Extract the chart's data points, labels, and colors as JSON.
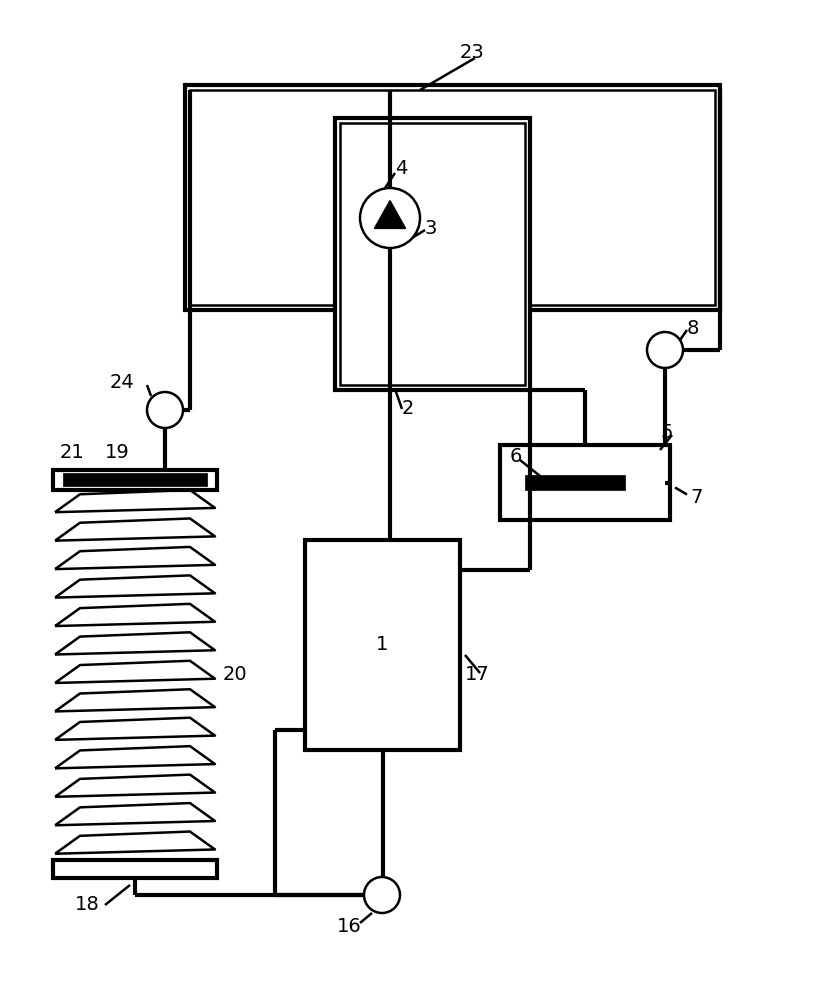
{
  "bg_color": "#ffffff",
  "line_color": "#000000",
  "lw": 1.8,
  "lw2": 3.0,
  "fs": 14,
  "fig_width": 8.31,
  "fig_height": 10.0
}
